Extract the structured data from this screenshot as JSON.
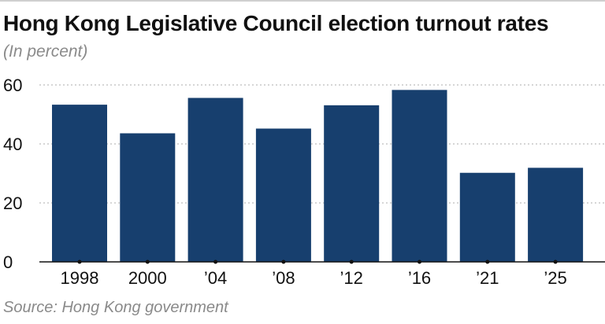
{
  "chart_data": {
    "type": "bar",
    "title": "Hong Kong Legislative Council election turnout rates",
    "subtitle": "(In percent)",
    "source": "Source: Hong Kong government",
    "categories": [
      "1998",
      "2000",
      "’04",
      "’08",
      "’12",
      "’16",
      "’21",
      "’25"
    ],
    "values": [
      53.3,
      43.6,
      55.6,
      45.2,
      53.1,
      58.3,
      30.2,
      31.9
    ],
    "ylim": [
      0,
      60
    ],
    "yticks": [
      0,
      20,
      40,
      60
    ],
    "xlabel": "",
    "ylabel": "",
    "grid": true,
    "colors": {
      "bar": "#173f6e",
      "grid": "#bdbdbd",
      "axis": "#111111"
    }
  }
}
